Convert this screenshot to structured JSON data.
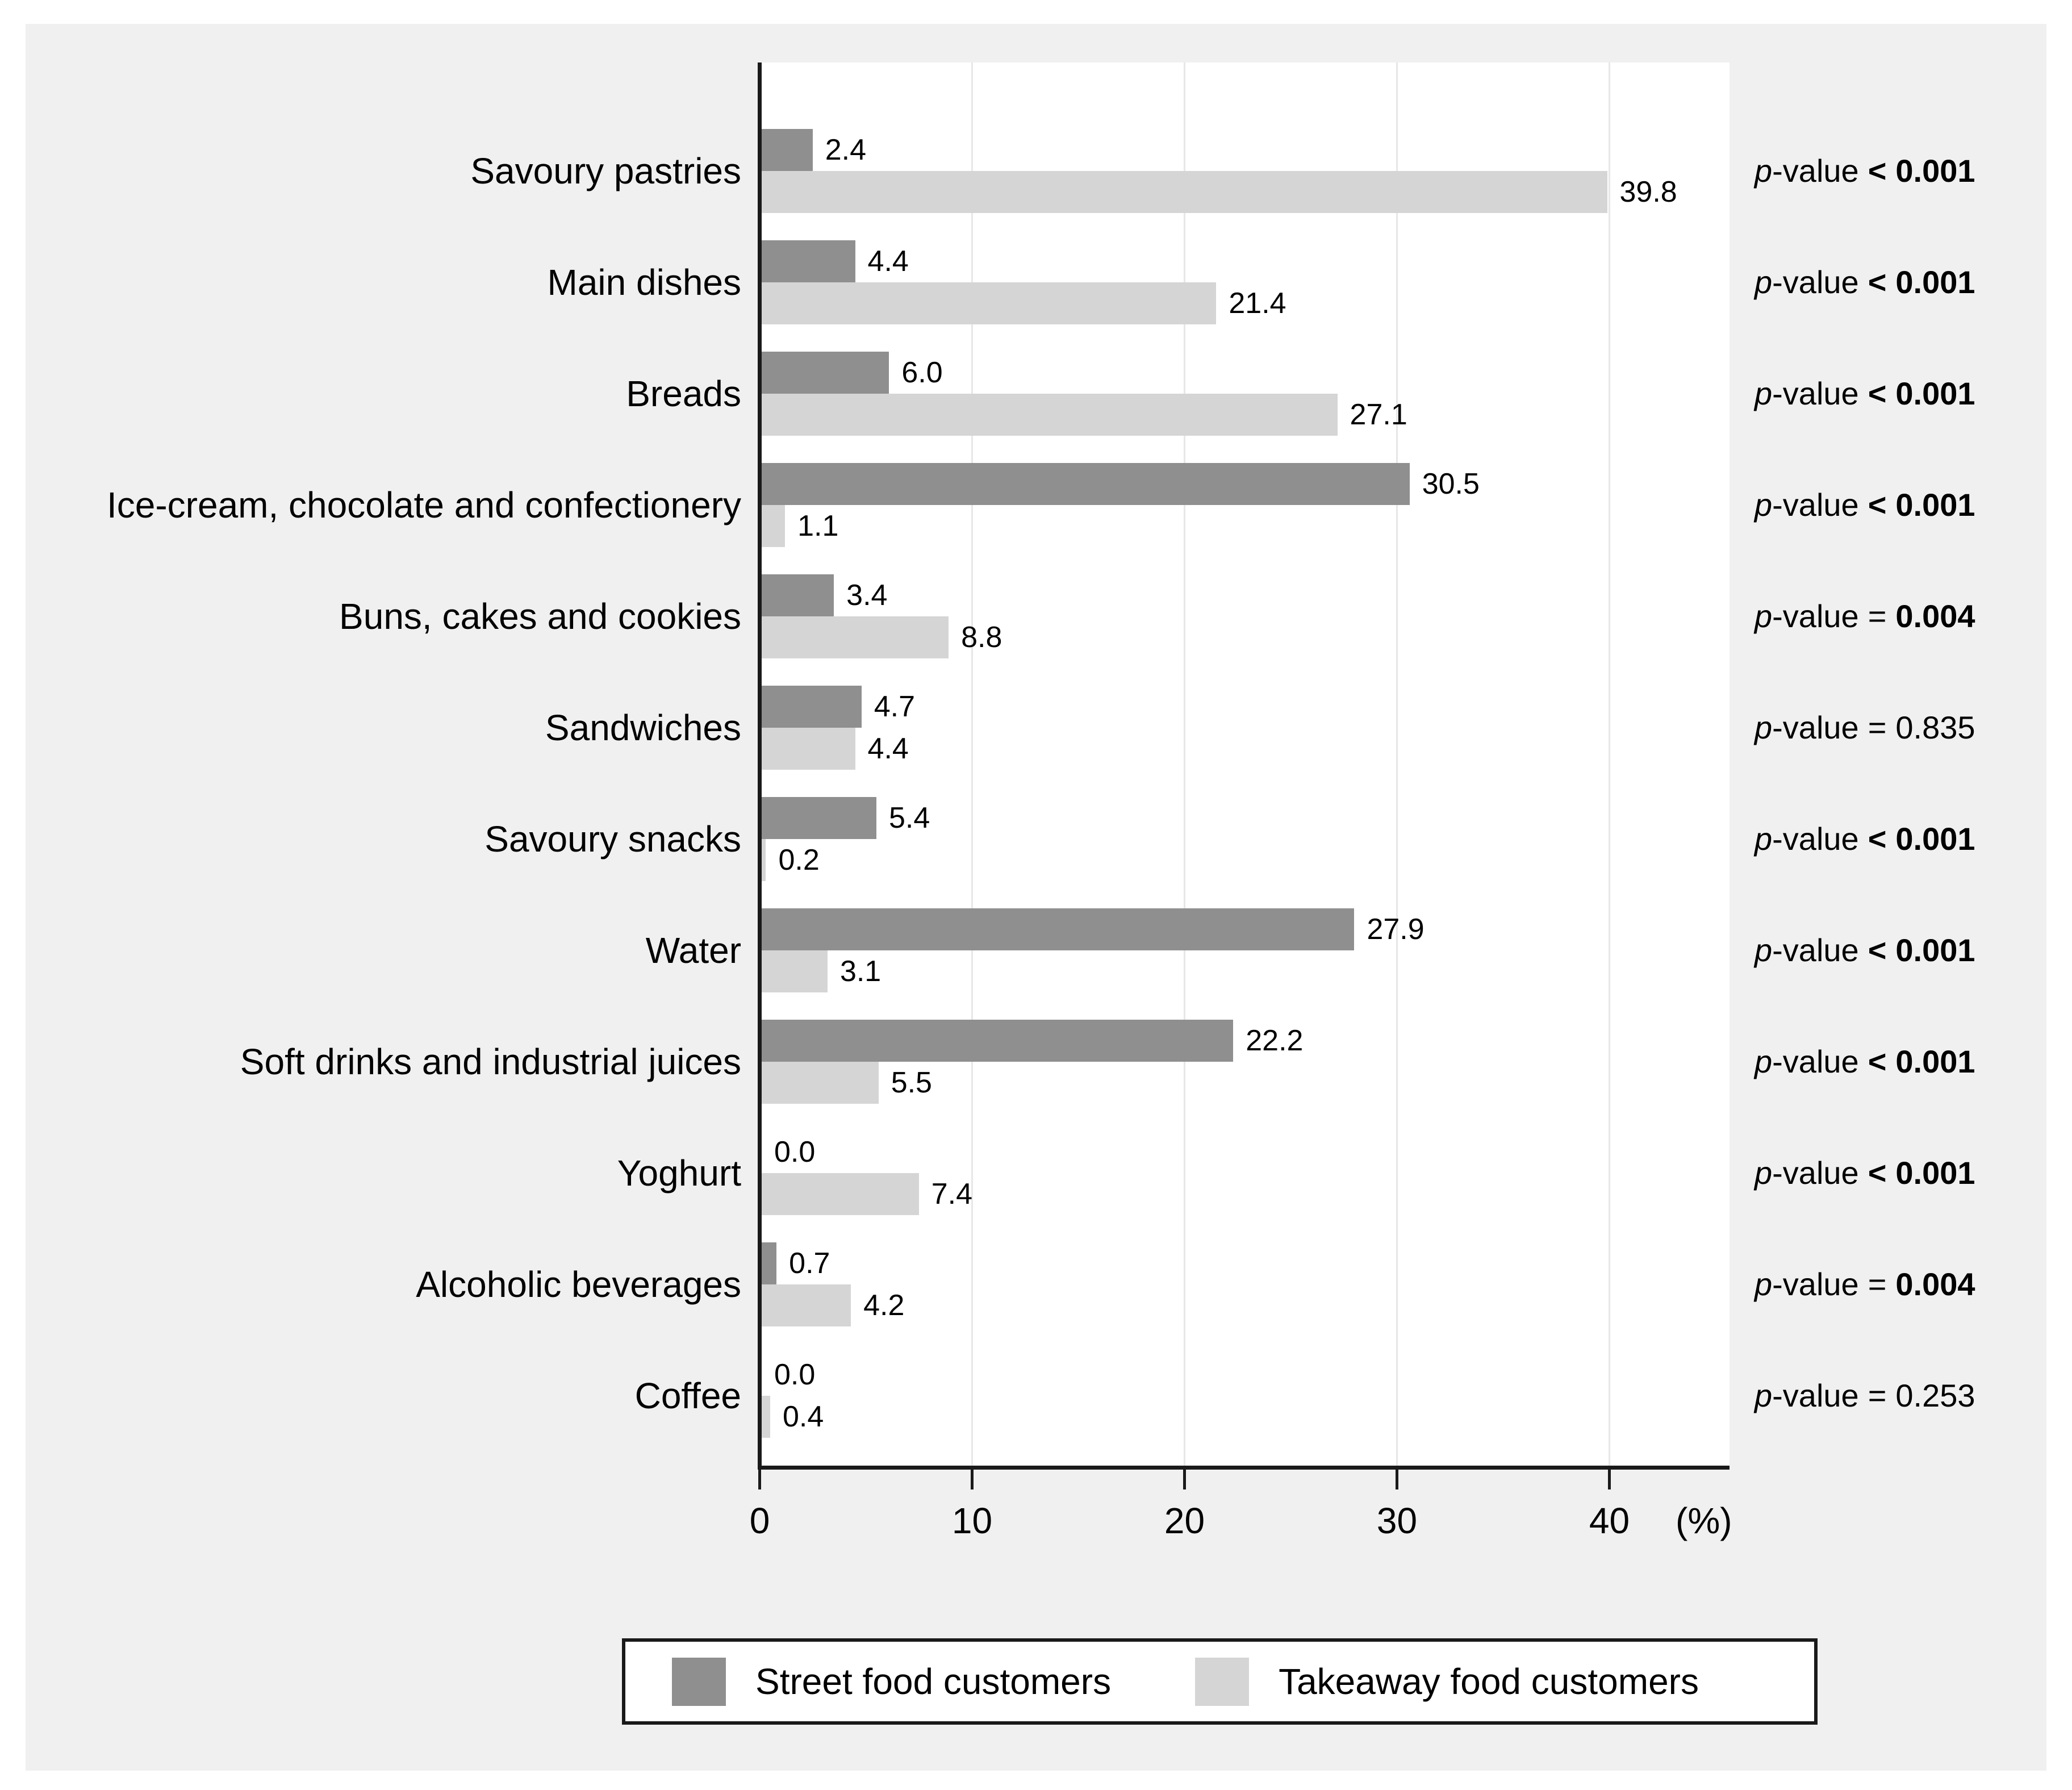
{
  "chart_data": {
    "type": "bar",
    "orientation": "horizontal",
    "title": "",
    "xlabel": "(%)",
    "x_ticks": [
      0,
      10,
      20,
      30,
      40
    ],
    "xlim": [
      0,
      45.6
    ],
    "grid": true,
    "legend_position": "bottom",
    "categories": [
      "Savoury pastries",
      "Main dishes",
      "Breads",
      "Ice-cream, chocolate and confectionery",
      "Buns, cakes and cookies",
      "Sandwiches",
      "Savoury snacks",
      "Water",
      "Soft drinks and industrial juices",
      "Yoghurt",
      "Alcoholic beverages",
      "Coffee"
    ],
    "series": [
      {
        "name": "Street food customers",
        "color": "#8f8f8f",
        "values": [
          2.4,
          4.4,
          6.0,
          30.5,
          3.4,
          4.7,
          5.4,
          27.9,
          22.2,
          0.0,
          0.7,
          0.0
        ],
        "labels": [
          "2.4",
          "4.4",
          "6.0",
          "30.5",
          "3.4",
          "4.7",
          "5.4",
          "27.9",
          "22.2",
          "0.0",
          "0.7",
          "0.0"
        ]
      },
      {
        "name": "Takeaway food customers",
        "color": "#d5d5d5",
        "values": [
          39.8,
          21.4,
          27.1,
          1.1,
          8.8,
          4.4,
          0.2,
          3.1,
          5.5,
          7.4,
          4.2,
          0.4
        ],
        "labels": [
          "39.8",
          "21.4",
          "27.1",
          "1.1",
          "8.8",
          "4.4",
          "0.2",
          "3.1",
          "5.5",
          "7.4",
          "4.2",
          "0.4"
        ]
      }
    ],
    "p_prefix_italic": "p",
    "p_prefix_rest": "-value",
    "p_values": [
      {
        "rel": "<",
        "value": "0.001",
        "bold": true
      },
      {
        "rel": "<",
        "value": "0.001",
        "bold": true
      },
      {
        "rel": "<",
        "value": "0.001",
        "bold": true
      },
      {
        "rel": "<",
        "value": "0.001",
        "bold": true
      },
      {
        "rel": "=",
        "value": "0.004",
        "bold": true
      },
      {
        "rel": "=",
        "value": "0.835",
        "bold": false
      },
      {
        "rel": "<",
        "value": "0.001",
        "bold": true
      },
      {
        "rel": "<",
        "value": "0.001",
        "bold": true
      },
      {
        "rel": "<",
        "value": "0.001",
        "bold": true
      },
      {
        "rel": "<",
        "value": "0.001",
        "bold": true
      },
      {
        "rel": "=",
        "value": "0.004",
        "bold": true
      },
      {
        "rel": "=",
        "value": "0.253",
        "bold": false
      }
    ]
  },
  "colors": {
    "panel": "#f0f0f0",
    "plot_background": "#ffffff",
    "gridline": "#e7e7e7",
    "axis": "#1a1a1a",
    "bar_street": "#8f8f8f",
    "bar_takeaway": "#d5d5d5",
    "text": "#000000"
  }
}
